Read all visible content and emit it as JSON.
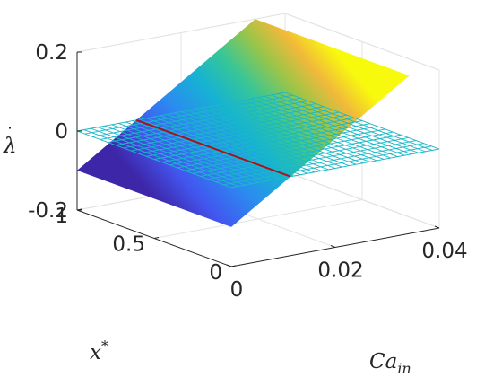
{
  "chart_data": {
    "type": "surface3d",
    "title": "",
    "xlabel_base": "Ca",
    "xlabel_sub": "in",
    "ylabel_text": "x",
    "ylabel_sup": "*",
    "zlabel_text": "λ",
    "xlim": [
      0,
      0.04
    ],
    "ylim": [
      0,
      1
    ],
    "zlim": [
      -0.2,
      0.2
    ],
    "x_ticks": [
      {
        "value": 0,
        "label": "0"
      },
      {
        "value": 0.02,
        "label": "0.02"
      },
      {
        "value": 0.04,
        "label": "0.04"
      }
    ],
    "y_ticks": [
      {
        "value": 0,
        "label": "0"
      },
      {
        "value": 0.5,
        "label": "0.5"
      },
      {
        "value": 1,
        "label": "1"
      }
    ],
    "z_ticks": [
      {
        "value": -0.2,
        "label": "-0.2"
      },
      {
        "value": 0,
        "label": "0"
      },
      {
        "value": 0.2,
        "label": "0.2"
      }
    ],
    "grid": true,
    "series": [
      {
        "kind": "surface",
        "description_value": "lambda_dot = slope * (Ca_in - crossing)",
        "slope": 8.75,
        "crossing": 0.0114,
        "colormap": "parula"
      },
      {
        "kind": "mesh",
        "z_value": 0,
        "edge_color": "#1ab8c8"
      },
      {
        "kind": "line",
        "x": [
          0.0114,
          0.0114
        ],
        "y": [
          0,
          1
        ],
        "z": [
          0,
          0
        ],
        "color": "#a8141c"
      }
    ]
  }
}
